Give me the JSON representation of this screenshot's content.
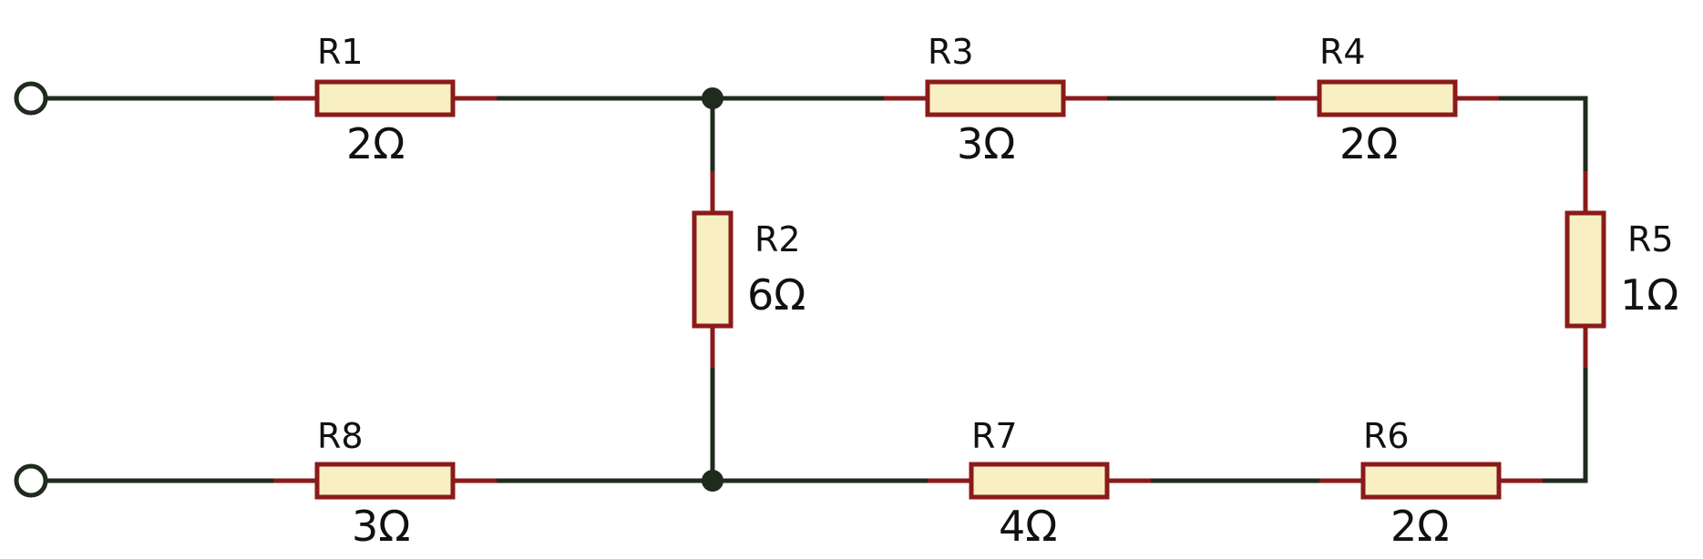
{
  "resistors": [
    {
      "id": "r1",
      "label": "R1",
      "value": "2Ω"
    },
    {
      "id": "r2",
      "label": "R2",
      "value": "6Ω"
    },
    {
      "id": "r3",
      "label": "R3",
      "value": "3Ω"
    },
    {
      "id": "r4",
      "label": "R4",
      "value": "2Ω"
    },
    {
      "id": "r5",
      "label": "R5",
      "value": "1Ω"
    },
    {
      "id": "r6",
      "label": "R6",
      "value": "2Ω"
    },
    {
      "id": "r7",
      "label": "R7",
      "value": "4Ω"
    },
    {
      "id": "r8",
      "label": "R8",
      "value": "3Ω"
    }
  ],
  "colors": {
    "wire": "#1f2b1d",
    "resistor_outline": "#8b1a1a",
    "resistor_fill": "#f8f0c2"
  }
}
